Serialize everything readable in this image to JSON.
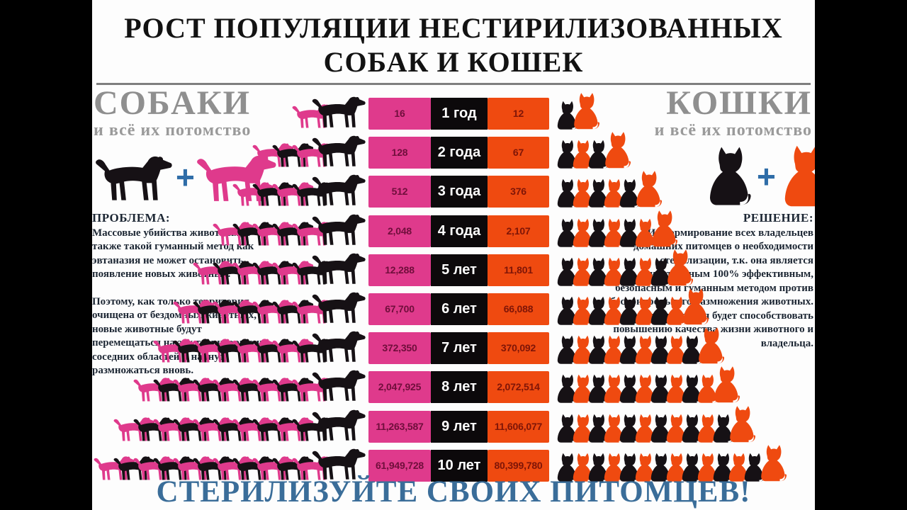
{
  "header": {
    "title_line1": "РОСТ ПОПУЛЯЦИИ НЕСТИРИЛИЗОВАННЫХ",
    "title_line2": "СОБАК И КОШЕК"
  },
  "dogs_section": {
    "heading": "СОБАКИ",
    "subheading": "и всё их потомство",
    "plus": "+",
    "problem_title": "ПРОБЛЕМА:",
    "problem_paragraph1": "Массовые убийства животных, а также такой гуманный метод как эвтаназия не может остановить появление новых животных.",
    "problem_paragraph2": "Поэтому, как только территория очищена от бездомных животных, новые животные будут перемещаться на эту территорию из соседних областей и начнут размножаться вновь."
  },
  "cats_section": {
    "heading": "КОШКИ",
    "subheading": "и всё их потомство",
    "plus": "+",
    "solution_title": "РЕШЕНИЕ:",
    "solution_paragraph1": "Информирование всех владельцев домашних питомцев о необходимости стерилизации, т.к. она является единственным 100% эффективным, безопасным и гуманным методом против бесконтрольного размножения животных.",
    "solution_paragraph2": "Стерилизация будет способствовать повышению качества жизни животного и владельца."
  },
  "footer": {
    "slogan": "СТЕРИЛИЗУЙТЕ СВОИХ ПИТОМЦЕВ!"
  },
  "colors": {
    "dog_pink": "#df3a8c",
    "cat_orange": "#ef4a10",
    "silhouette_black": "#161115",
    "accent_blue": "#3a6d99",
    "heading_gray": "#8f8f8f"
  },
  "chart_data": {
    "type": "table",
    "title": "РОСТ ПОПУЛЯЦИИ НЕСТИРИЛИЗОВАННЫХ СОБАК И КОШЕК",
    "categories": [
      "1 год",
      "2 года",
      "3 года",
      "4 года",
      "5 лет",
      "6 лет",
      "7 лет",
      "8 лет",
      "9 лет",
      "10 лет"
    ],
    "series": [
      {
        "name": "СОБАКИ",
        "values": [
          16,
          128,
          512,
          2048,
          12288,
          67700,
          372350,
          2047925,
          11263587,
          61949728
        ]
      },
      {
        "name": "КОШКИ",
        "values": [
          12,
          67,
          376,
          2107,
          11801,
          66088,
          370092,
          2072514,
          11606077,
          80399780
        ]
      }
    ],
    "rows": [
      {
        "year": "1 год",
        "dogs": "16",
        "cats": "12",
        "dog_icons": 2,
        "cat_icons": 2
      },
      {
        "year": "2 года",
        "dogs": "128",
        "cats": "67",
        "dog_icons": 4,
        "cat_icons": 4
      },
      {
        "year": "3 года",
        "dogs": "512",
        "cats": "376",
        "dog_icons": 5,
        "cat_icons": 6
      },
      {
        "year": "4 года",
        "dogs": "2,048",
        "cats": "2,107",
        "dog_icons": 6,
        "cat_icons": 7
      },
      {
        "year": "5 лет",
        "dogs": "12,288",
        "cats": "11,801",
        "dog_icons": 7,
        "cat_icons": 8
      },
      {
        "year": "6 лет",
        "dogs": "67,700",
        "cats": "66,088",
        "dog_icons": 8,
        "cat_icons": 9
      },
      {
        "year": "7 лет",
        "dogs": "372,350",
        "cats": "370,092",
        "dog_icons": 9,
        "cat_icons": 10
      },
      {
        "year": "8 лет",
        "dogs": "2,047,925",
        "cats": "2,072,514",
        "dog_icons": 10,
        "cat_icons": 11
      },
      {
        "year": "9 лет",
        "dogs": "11,263,587",
        "cats": "11,606,077",
        "dog_icons": 11,
        "cat_icons": 12
      },
      {
        "year": "10 лет",
        "dogs": "61,949,728",
        "cats": "80,399,780",
        "dog_icons": 12,
        "cat_icons": 14
      }
    ]
  }
}
